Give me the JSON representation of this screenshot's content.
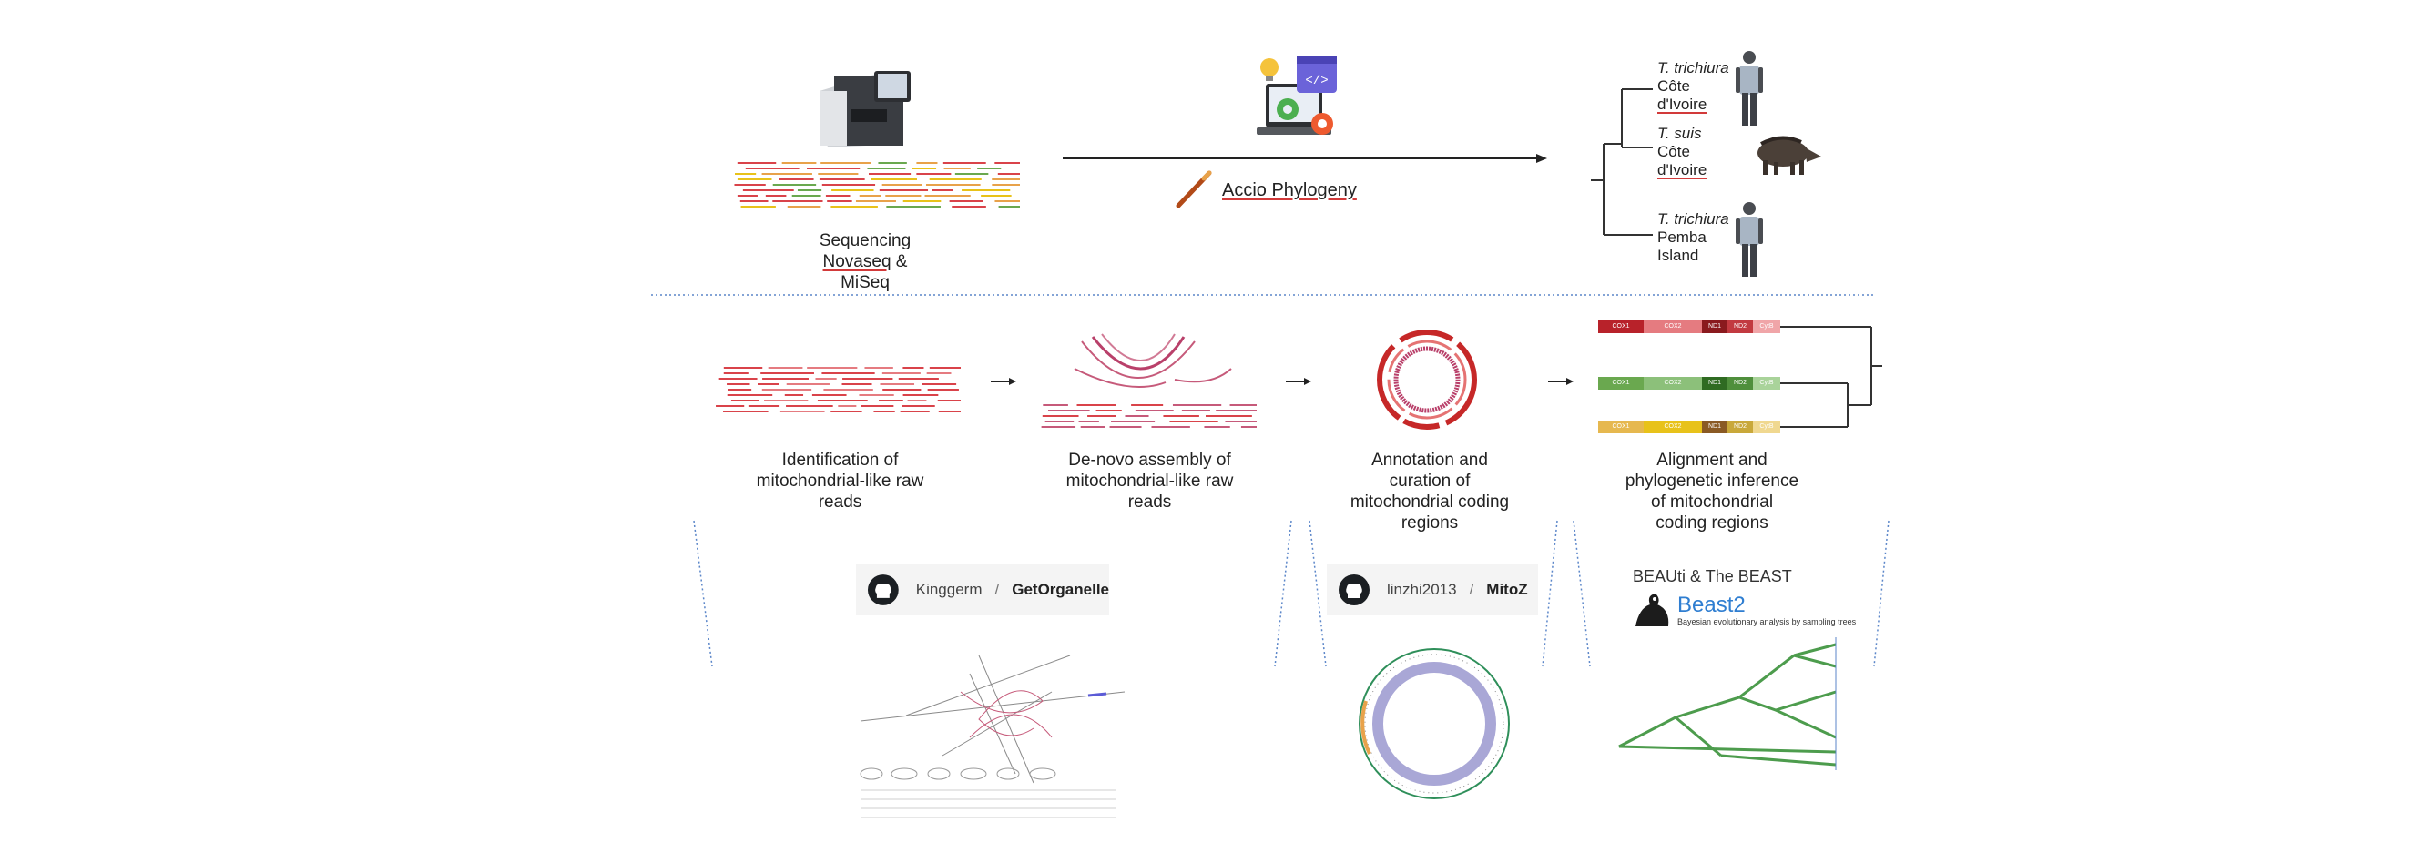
{
  "top": {
    "sequencing": {
      "line1": "Sequencing",
      "line2": "Novaseq",
      "line2b": " &",
      "line3": "MiSeq"
    },
    "accio": {
      "label": "Accio Phylogeny"
    },
    "tree": {
      "taxa": [
        {
          "species": "T. trichiura",
          "loc1": "Côte",
          "loc2": "d'Ivoire",
          "host": "human"
        },
        {
          "species": "T. suis",
          "loc1": "Côte",
          "loc2": "d'Ivoire",
          "host": "boar"
        },
        {
          "species": "T. trichiura",
          "loc1": "Pemba",
          "loc2": "Island",
          "host": "human"
        }
      ]
    }
  },
  "steps": [
    {
      "l1": "Identification of",
      "l2": "mitochondrial-like raw",
      "l3": "reads",
      "l4": ""
    },
    {
      "l1": "De-novo assembly of",
      "l2": "mitochondrial-like raw",
      "l3": "reads",
      "l4": ""
    },
    {
      "l1": "Annotation and",
      "l2": "curation of",
      "l3": "mitochondrial coding",
      "l4": "regions"
    },
    {
      "l1": "Alignment and",
      "l2": "phylogenetic inference",
      "l3": "of mitochondrial",
      "l4": "coding regions"
    }
  ],
  "genes": [
    "COX1",
    "COX2",
    "ND1",
    "ND2",
    "CytB"
  ],
  "gene_colors": {
    "red": [
      "#b8222a",
      "#e57b80",
      "#8a1a1e",
      "#c23a40",
      "#f0a5a8"
    ],
    "green": [
      "#6aa84f",
      "#8cc07a",
      "#2f6b22",
      "#4f8f3c",
      "#a9d39a"
    ],
    "yellow": [
      "#e6b84f",
      "#e8c21a",
      "#8a5a24",
      "#c9a83a",
      "#f0d890"
    ]
  },
  "tools": {
    "getorganelle": {
      "user": "Kinggerm",
      "sep": "/",
      "repo": "GetOrganelle"
    },
    "mitoz": {
      "user": "linzhi2013",
      "sep": "/",
      "repo": "MitoZ"
    },
    "beast": {
      "title": "BEAUti & The BEAST",
      "name": "Beast2",
      "tagline": "Bayesian evolutionary analysis by sampling trees"
    }
  },
  "colors": {
    "read_red": "#d9434a",
    "read_pink": "#c65a7a",
    "tree_green": "#2e8b2e",
    "dotted_blue": "#5b86c9",
    "circle_purple": "#a9a7d6"
  }
}
